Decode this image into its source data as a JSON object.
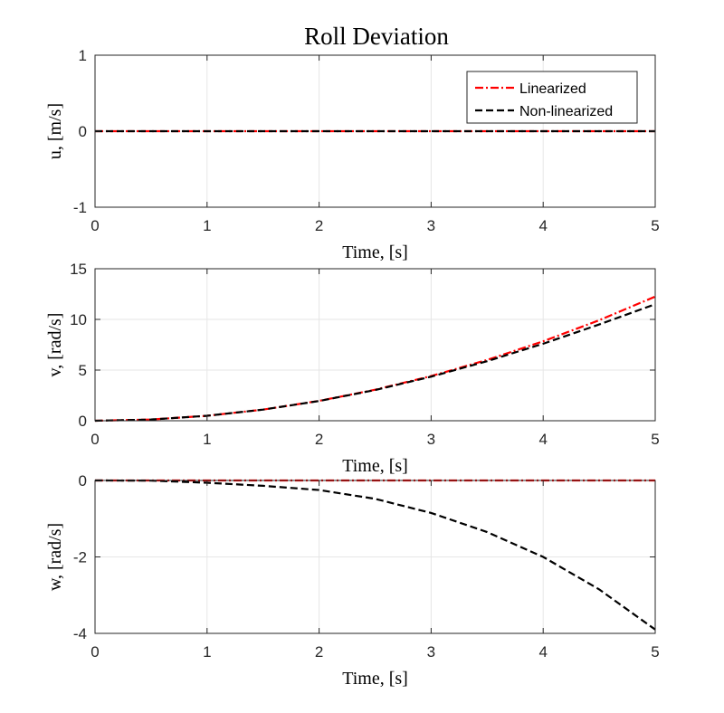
{
  "chart_data": {
    "title": "Roll Deviation",
    "xlabel": "Time, [s]",
    "xlim": [
      0,
      5
    ],
    "xticks": [
      0,
      1,
      2,
      3,
      4,
      5
    ],
    "grid": true,
    "legend": {
      "placement": "top-right",
      "subplot": 0
    },
    "colors": {
      "linearized": "#ff0000",
      "nonlinearized": "#000000"
    },
    "subplots": [
      {
        "type": "line",
        "ylabel": "u, [m/s]",
        "ylim": [
          -1,
          1
        ],
        "yticks": [
          -1,
          0,
          1
        ],
        "x": [
          0,
          0.5,
          1,
          1.5,
          2,
          2.5,
          3,
          3.5,
          4,
          4.5,
          5
        ],
        "series": [
          {
            "name": "Linearized",
            "style": "dash-dot",
            "values": [
              0,
              0,
              0,
              0,
              0,
              0,
              0,
              0,
              0,
              0,
              0
            ]
          },
          {
            "name": "Non-linearized",
            "style": "dashed",
            "values": [
              0,
              0,
              0,
              0,
              0,
              0,
              0,
              0,
              0,
              0,
              0
            ]
          }
        ]
      },
      {
        "type": "line",
        "ylabel": "v, [rad/s]",
        "ylim": [
          0,
          15
        ],
        "yticks": [
          0,
          5,
          10,
          15
        ],
        "x": [
          0,
          0.5,
          1,
          1.5,
          2,
          2.5,
          3,
          3.5,
          4,
          4.5,
          5
        ],
        "series": [
          {
            "name": "Linearized",
            "style": "dash-dot",
            "values": [
              0,
              0.12,
              0.49,
              1.1,
              1.96,
              3.06,
              4.41,
              6.0,
              7.84,
              9.92,
              12.25
            ]
          },
          {
            "name": "Non-linearized",
            "style": "dashed",
            "values": [
              0,
              0.12,
              0.49,
              1.1,
              1.95,
              3.03,
              4.35,
              5.88,
              7.6,
              9.5,
              11.5
            ]
          }
        ]
      },
      {
        "type": "line",
        "ylabel": "w, [rad/s]",
        "ylim": [
          -4,
          0
        ],
        "yticks": [
          -4,
          -2,
          0
        ],
        "x": [
          0,
          0.5,
          1,
          1.5,
          2,
          2.5,
          3,
          3.5,
          4,
          4.5,
          5
        ],
        "series": [
          {
            "name": "Linearized",
            "style": "dash-dot",
            "values": [
              0,
              0,
              0,
              0,
              0,
              0,
              0,
              0,
              0,
              0,
              0
            ]
          },
          {
            "name": "Non-linearized",
            "style": "dashed",
            "values": [
              0,
              -0.004,
              -0.06,
              -0.14,
              -0.25,
              -0.48,
              -0.85,
              -1.35,
              -2.0,
              -2.85,
              -3.9
            ]
          }
        ]
      }
    ]
  }
}
